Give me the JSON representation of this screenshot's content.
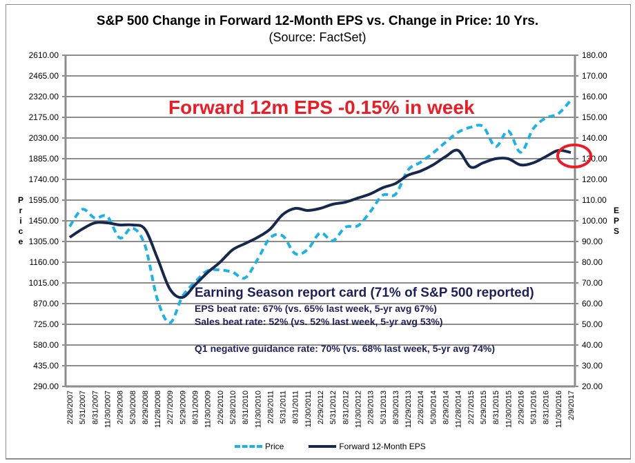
{
  "chart_data": {
    "type": "line",
    "title": "S&P 500 Change in Forward 12-Month EPS vs. Change in Price: 10 Yrs.",
    "subtitle": "(Source: FactSet)",
    "ylabel_left": "Price",
    "ylabel_right": "EPS",
    "xlabel": "",
    "ylim_left": [
      290,
      2610
    ],
    "ylim_right": [
      20,
      180
    ],
    "yticks_left": [
      "2610.00",
      "2465.00",
      "2320.00",
      "2175.00",
      "2030.00",
      "1885.00",
      "1740.00",
      "1595.00",
      "1450.00",
      "1305.00",
      "1160.00",
      "1015.00",
      "870.00",
      "725.00",
      "580.00",
      "435.00",
      "290.00"
    ],
    "yticks_right": [
      "180.00",
      "170.00",
      "160.00",
      "150.00",
      "140.00",
      "130.00",
      "120.00",
      "110.00",
      "100.00",
      "90.00",
      "80.00",
      "70.00",
      "60.00",
      "50.00",
      "40.00",
      "30.00",
      "20.00"
    ],
    "grid": true,
    "legend_position": "bottom",
    "categories": [
      "2/28/2007",
      "5/31/2007",
      "8/31/2007",
      "11/30/2007",
      "2/29/2008",
      "5/30/2008",
      "8/29/2008",
      "11/28/2008",
      "2/27/2009",
      "5/29/2009",
      "8/31/2009",
      "11/30/2009",
      "2/26/2010",
      "5/28/2010",
      "8/31/2010",
      "11/30/2010",
      "2/28/2011",
      "5/31/2011",
      "8/31/2011",
      "11/30/2011",
      "2/29/2012",
      "5/31/2012",
      "8/31/2012",
      "11/30/2012",
      "2/28/2013",
      "5/31/2013",
      "8/30/2013",
      "11/29/2013",
      "2/28/2014",
      "5/30/2014",
      "8/29/2014",
      "11/28/2014",
      "2/27/2015",
      "5/29/2015",
      "8/31/2015",
      "11/30/2015",
      "2/29/2016",
      "5/31/2016",
      "8/31/2016",
      "11/30/2016",
      "2/9/2017"
    ],
    "series": [
      {
        "name": "Price",
        "axis": "left",
        "style": "dashed",
        "color": "#1ab2e8",
        "values": [
          1410,
          1530,
          1470,
          1480,
          1330,
          1400,
          1280,
          900,
          735,
          920,
          1020,
          1100,
          1105,
          1090,
          1050,
          1180,
          1330,
          1345,
          1220,
          1250,
          1365,
          1310,
          1405,
          1415,
          1515,
          1630,
          1635,
          1805,
          1860,
          1925,
          2000,
          2070,
          2105,
          2110,
          1970,
          2080,
          1930,
          2095,
          2170,
          2200,
          2295
        ]
      },
      {
        "name": "Forward 12-Month EPS",
        "axis": "right",
        "style": "solid",
        "color": "#17284f",
        "values": [
          92,
          96,
          99,
          99,
          98,
          98,
          96,
          82,
          67,
          63,
          69,
          75,
          80,
          86,
          89,
          92,
          96,
          103,
          106,
          105,
          106,
          108,
          109,
          111,
          113,
          116,
          118,
          122,
          124,
          127,
          131,
          134,
          126,
          128,
          130,
          130,
          127,
          128,
          131,
          134,
          133
        ]
      }
    ],
    "annotations": [
      {
        "text": "Forward 12m EPS -0.15% in week",
        "color": "#ed1c24"
      },
      {
        "text": "red circle highlighting latest EPS value",
        "color": "#ed1c24"
      }
    ]
  },
  "report_card": {
    "heading": "Earning Season report card (71% of S&P 500 reported)",
    "eps_beat": "EPS beat rate: 67% (vs. 65% last week, 5-yr avg 67%)",
    "sales_beat": "Sales beat rate: 52% (vs. 52% last week, 5-yr avg 53%)",
    "guidance": "Q1 negative guidance rate: 70% (vs. 68% last week, 5-yr avg 74%)"
  },
  "legend": {
    "price": "Price",
    "eps": "Forward 12-Month EPS"
  }
}
